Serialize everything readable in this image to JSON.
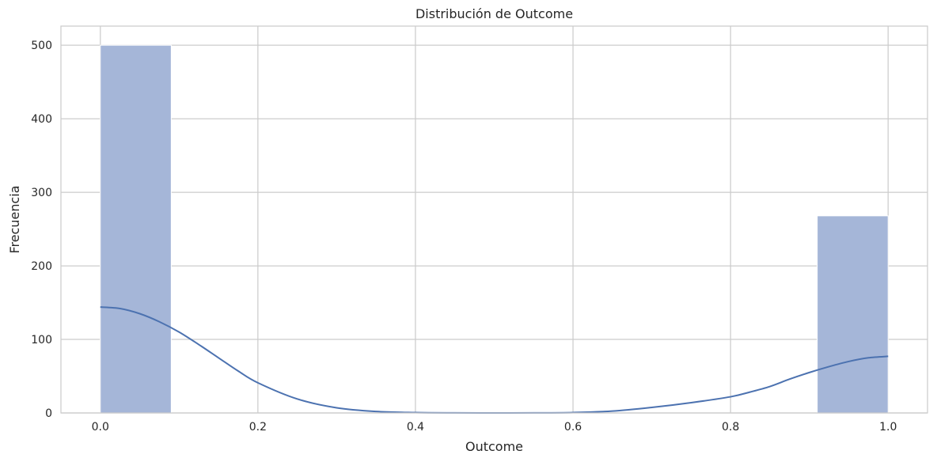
{
  "chart_data": {
    "type": "bar",
    "title": "Distribución de Outcome",
    "xlabel": "Outcome",
    "ylabel": "Frecuencia",
    "xlim": [
      -0.05,
      1.05
    ],
    "ylim": [
      0,
      526
    ],
    "xticks": [
      "0.0",
      "0.2",
      "0.4",
      "0.6",
      "0.8",
      "1.0"
    ],
    "xtick_values": [
      0.0,
      0.2,
      0.4,
      0.6,
      0.8,
      1.0
    ],
    "yticks": [
      "0",
      "100",
      "200",
      "300",
      "400",
      "500"
    ],
    "ytick_values": [
      0,
      100,
      200,
      300,
      400,
      500
    ],
    "grid": true,
    "bins": [
      {
        "x0": 0.0,
        "x1": 0.09,
        "count": 500
      },
      {
        "x0": 0.91,
        "x1": 1.0,
        "count": 268
      }
    ],
    "kde": {
      "x": [
        0.0,
        0.025,
        0.05,
        0.075,
        0.1,
        0.125,
        0.15,
        0.175,
        0.2,
        0.25,
        0.3,
        0.35,
        0.4,
        0.45,
        0.5,
        0.55,
        0.6,
        0.65,
        0.7,
        0.75,
        0.8,
        0.825,
        0.85,
        0.875,
        0.9,
        0.925,
        0.95,
        0.975,
        1.0
      ],
      "y": [
        144,
        142,
        135,
        124,
        110,
        93,
        75,
        57,
        41,
        19,
        7,
        2,
        0.5,
        0.1,
        0,
        0.1,
        0.6,
        2.5,
        7.5,
        14,
        22,
        28.5,
        36,
        46,
        55,
        63,
        70,
        75,
        77
      ]
    },
    "colors": {
      "bar": "#a5b6d8",
      "kde": "#4c72b0"
    }
  }
}
